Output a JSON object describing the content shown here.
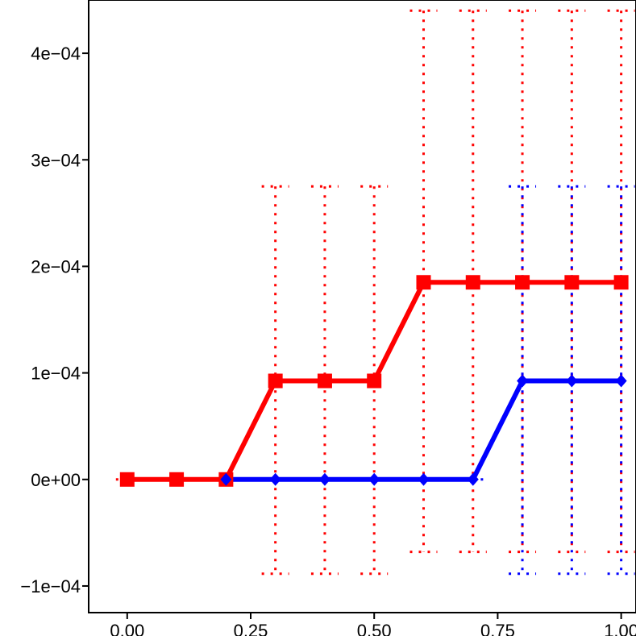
{
  "chart_data": {
    "type": "line",
    "title": "",
    "xlabel": "",
    "ylabel": "",
    "xlim": [
      -0.078,
      1.03
    ],
    "ylim": [
      -0.000125,
      0.00045
    ],
    "x_ticks": [
      {
        "value": 0.0,
        "label": "0.00"
      },
      {
        "value": 0.25,
        "label": "0.25"
      },
      {
        "value": 0.5,
        "label": "0.50"
      },
      {
        "value": 0.75,
        "label": "0.75"
      },
      {
        "value": 1.0,
        "label": "1.00"
      }
    ],
    "y_ticks": [
      {
        "value": -0.0001,
        "label": "−1e−04"
      },
      {
        "value": 0.0,
        "label": "0e+00"
      },
      {
        "value": 0.0001,
        "label": "1e−04"
      },
      {
        "value": 0.0002,
        "label": "2e−04"
      },
      {
        "value": 0.0003,
        "label": "3e−04"
      },
      {
        "value": 0.0004,
        "label": "4e−04"
      }
    ],
    "grid": false,
    "series": [
      {
        "color": "#ff0000",
        "marker": "square",
        "x": [
          0.0,
          0.1,
          0.2,
          0.3,
          0.4,
          0.5,
          0.6,
          0.7,
          0.8,
          0.9,
          1.0
        ],
        "y": [
          0.0,
          0.0,
          0.0,
          9.25e-05,
          9.25e-05,
          9.25e-05,
          0.000185,
          0.000185,
          0.000185,
          0.000185,
          0.000185
        ],
        "err_low": [
          null,
          null,
          null,
          -8.85e-05,
          -8.85e-05,
          -8.85e-05,
          -6.8e-05,
          -6.8e-05,
          -6.8e-05,
          -6.8e-05,
          -6.8e-05
        ],
        "err_high": [
          null,
          null,
          null,
          0.000275,
          0.000275,
          0.000275,
          0.00044,
          0.00044,
          0.00044,
          0.00044,
          0.00044
        ]
      },
      {
        "color": "#0000ff",
        "marker": "diamond",
        "x": [
          0.2,
          0.3,
          0.4,
          0.5,
          0.6,
          0.7,
          0.8,
          0.9,
          1.0
        ],
        "y": [
          0.0,
          0.0,
          0.0,
          0.0,
          0.0,
          0.0,
          9.25e-05,
          9.25e-05,
          9.25e-05
        ],
        "err_low": [
          null,
          null,
          null,
          null,
          null,
          null,
          -8.85e-05,
          -8.85e-05,
          -8.85e-05
        ],
        "err_high": [
          null,
          null,
          null,
          null,
          null,
          null,
          0.000275,
          0.000275,
          0.000275
        ]
      }
    ]
  }
}
